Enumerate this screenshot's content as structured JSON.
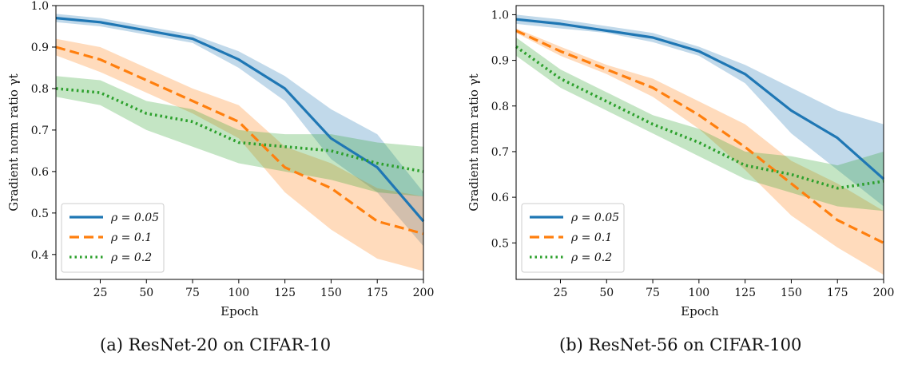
{
  "chart_data": [
    {
      "type": "line",
      "caption": "(a) ResNet-20 on CIFAR-10",
      "xlabel": "Epoch",
      "ylabel": "Gradient norm ratio γt",
      "xlim": [
        1,
        200
      ],
      "ylim": [
        0.34,
        1.0
      ],
      "xticks": [
        25,
        50,
        75,
        100,
        125,
        150,
        175,
        200
      ],
      "yticks": [
        0.4,
        0.5,
        0.6,
        0.7,
        0.8,
        0.9,
        1.0
      ],
      "ytick_labels": [
        "0.4",
        "0.5",
        "0.6",
        "0.7",
        "0.8",
        "0.9",
        "1.0"
      ],
      "legend": "lower-left",
      "x": [
        1,
        25,
        50,
        75,
        100,
        125,
        150,
        175,
        200
      ],
      "series": [
        {
          "name": "ρ = 0.05",
          "color": "#1f77b4",
          "dash": "solid",
          "values": [
            0.97,
            0.96,
            0.94,
            0.92,
            0.87,
            0.8,
            0.68,
            0.61,
            0.48
          ],
          "lower": [
            0.96,
            0.95,
            0.93,
            0.91,
            0.85,
            0.77,
            0.63,
            0.55,
            0.42
          ],
          "upper": [
            0.98,
            0.97,
            0.95,
            0.93,
            0.89,
            0.83,
            0.75,
            0.69,
            0.55
          ]
        },
        {
          "name": "ρ = 0.1",
          "color": "#ff7f0e",
          "dash": "dashed",
          "values": [
            0.9,
            0.87,
            0.82,
            0.77,
            0.72,
            0.61,
            0.56,
            0.48,
            0.45
          ],
          "lower": [
            0.88,
            0.84,
            0.79,
            0.74,
            0.68,
            0.55,
            0.46,
            0.39,
            0.36
          ],
          "upper": [
            0.92,
            0.9,
            0.85,
            0.8,
            0.76,
            0.66,
            0.62,
            0.56,
            0.54
          ]
        },
        {
          "name": "ρ = 0.2",
          "color": "#2ca02c",
          "dash": "dotted",
          "values": [
            0.8,
            0.79,
            0.74,
            0.72,
            0.67,
            0.66,
            0.65,
            0.62,
            0.6
          ],
          "lower": [
            0.78,
            0.76,
            0.7,
            0.66,
            0.62,
            0.6,
            0.58,
            0.55,
            0.54
          ],
          "upper": [
            0.83,
            0.82,
            0.77,
            0.75,
            0.7,
            0.69,
            0.69,
            0.67,
            0.66
          ]
        }
      ]
    },
    {
      "type": "line",
      "caption": "(b) ResNet-56 on CIFAR-100",
      "xlabel": "Epoch",
      "ylabel": "Gradient norm ratio γt",
      "xlim": [
        1,
        200
      ],
      "ylim": [
        0.42,
        1.02
      ],
      "xticks": [
        25,
        50,
        75,
        100,
        125,
        150,
        175,
        200
      ],
      "yticks": [
        0.5,
        0.6,
        0.7,
        0.8,
        0.9,
        1.0
      ],
      "ytick_labels": [
        "0.5",
        "0.6",
        "0.7",
        "0.8",
        "0.9",
        "1.0"
      ],
      "legend": "lower-left",
      "x": [
        1,
        25,
        50,
        75,
        100,
        125,
        150,
        175,
        200
      ],
      "series": [
        {
          "name": "ρ = 0.05",
          "color": "#1f77b4",
          "dash": "solid",
          "values": [
            0.99,
            0.98,
            0.965,
            0.95,
            0.92,
            0.87,
            0.79,
            0.73,
            0.64
          ],
          "lower": [
            0.98,
            0.97,
            0.96,
            0.94,
            0.91,
            0.85,
            0.74,
            0.66,
            0.58
          ],
          "upper": [
            1.0,
            0.99,
            0.975,
            0.96,
            0.93,
            0.89,
            0.84,
            0.79,
            0.76
          ]
        },
        {
          "name": "ρ = 0.1",
          "color": "#ff7f0e",
          "dash": "dashed",
          "values": [
            0.965,
            0.92,
            0.88,
            0.84,
            0.78,
            0.71,
            0.63,
            0.55,
            0.5
          ],
          "lower": [
            0.96,
            0.91,
            0.87,
            0.82,
            0.75,
            0.66,
            0.56,
            0.49,
            0.43
          ],
          "upper": [
            0.97,
            0.93,
            0.89,
            0.86,
            0.81,
            0.76,
            0.68,
            0.63,
            0.57
          ]
        },
        {
          "name": "ρ = 0.2",
          "color": "#2ca02c",
          "dash": "dotted",
          "values": [
            0.93,
            0.86,
            0.81,
            0.76,
            0.72,
            0.67,
            0.65,
            0.62,
            0.635
          ],
          "lower": [
            0.91,
            0.84,
            0.79,
            0.74,
            0.69,
            0.64,
            0.61,
            0.58,
            0.57
          ],
          "upper": [
            0.95,
            0.88,
            0.83,
            0.78,
            0.75,
            0.7,
            0.69,
            0.67,
            0.7
          ]
        }
      ]
    }
  ]
}
